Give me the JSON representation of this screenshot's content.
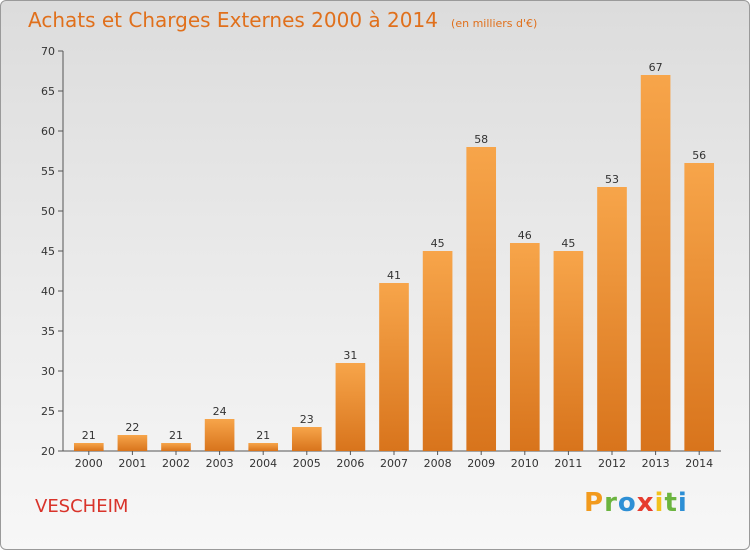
{
  "chart_data": {
    "type": "bar",
    "title": "Achats et Charges Externes 2000 à 2014",
    "subtitle": "(en milliers d'€)",
    "categories": [
      "2000",
      "2001",
      "2002",
      "2003",
      "2004",
      "2005",
      "2006",
      "2007",
      "2008",
      "2009",
      "2010",
      "2011",
      "2012",
      "2013",
      "2014"
    ],
    "values": [
      21,
      22,
      21,
      24,
      21,
      23,
      31,
      41,
      45,
      58,
      46,
      45,
      53,
      67,
      56
    ],
    "ylim": [
      20,
      70
    ],
    "yticks": [
      20,
      25,
      30,
      35,
      40,
      45,
      50,
      55,
      60,
      65,
      70
    ],
    "grid": false,
    "bar_color": "#f0922e"
  },
  "commune": "VESCHEIM",
  "logo": {
    "letters": [
      "P",
      "r",
      "o",
      "x",
      "i",
      "t",
      "i"
    ],
    "colors": [
      "#f29a1d",
      "#6bb43f",
      "#2d8fd5",
      "#e63c2f",
      "#f2c21d",
      "#6bb43f",
      "#2d8fd5"
    ]
  }
}
